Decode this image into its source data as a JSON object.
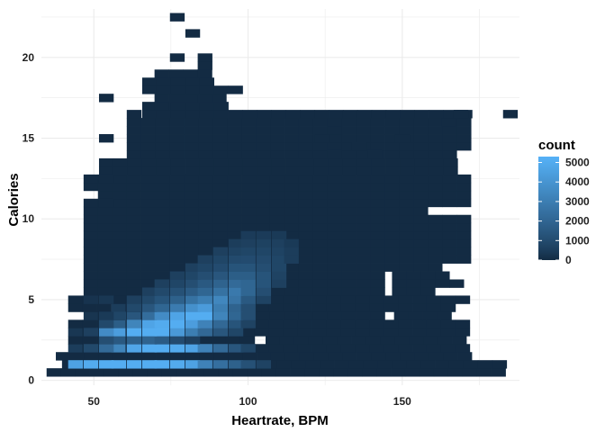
{
  "chart_data": {
    "type": "heatmap",
    "title": "",
    "xlabel": "Heartrate, BPM",
    "ylabel": "Calories",
    "xlim": [
      33,
      188
    ],
    "ylim": [
      -0.3,
      23
    ],
    "x_ticks": [
      50,
      100,
      150
    ],
    "x_minor_ticks": [
      75,
      125,
      175
    ],
    "y_ticks": [
      0,
      5,
      10,
      15,
      20
    ],
    "y_minor_ticks": [
      2.5,
      7.5,
      12.5,
      17.5,
      22.5
    ],
    "grid": true,
    "legend": {
      "title": "count",
      "position": "right",
      "breaks": [
        5000,
        4000,
        3000,
        2000,
        1000,
        0
      ],
      "limits": [
        0,
        5300
      ]
    },
    "colors": {
      "low": "#132B43",
      "high": "#56B1F7",
      "grid": "#ebebeb"
    },
    "bin_width": {
      "x": 4.65,
      "y": 0.5
    },
    "rows": [
      {
        "y": 1.0,
        "spans": [
          [
            42,
            47,
            0
          ]
        ],
        "values": [
          [
            44,
            45,
            5000
          ],
          [
            49,
            70,
            5100
          ],
          [
            75,
            5000
          ],
          [
            80,
            4200
          ],
          [
            84,
            3000
          ],
          [
            89,
            2500
          ],
          [
            94,
            1800
          ],
          [
            98,
            1200
          ],
          [
            103,
            700
          ]
        ]
      },
      {
        "y": 1.0,
        "spans": [
          [
            40,
            183,
            0
          ]
        ]
      },
      {
        "y": 2.0,
        "spans": [
          [
            44,
            172,
            0
          ]
        ],
        "values": [
          [
            54,
            1500
          ],
          [
            58,
            2000
          ],
          [
            63,
            3200
          ],
          [
            68,
            4500
          ],
          [
            72,
            5000
          ],
          [
            77,
            4800
          ],
          [
            82,
            4200
          ],
          [
            86,
            3200
          ],
          [
            91,
            2000
          ],
          [
            96,
            1200
          ],
          [
            100,
            700
          ]
        ]
      },
      {
        "y": 2.5,
        "spans": [
          [
            44,
            102,
            0
          ],
          [
            107,
            172,
            0
          ]
        ],
        "values": [
          [
            54,
            900
          ],
          [
            58,
            1300
          ],
          [
            63,
            1800
          ],
          [
            68,
            2000
          ],
          [
            72,
            1600
          ],
          [
            77,
            900
          ],
          [
            82,
            500
          ]
        ]
      },
      {
        "y": 3.0,
        "spans": [
          [
            44,
            172,
            0
          ]
        ],
        "values": [
          [
            54,
            700
          ],
          [
            58,
            1600
          ],
          [
            63,
            2600
          ],
          [
            68,
            4600
          ],
          [
            72,
            5000
          ],
          [
            77,
            4200
          ],
          [
            82,
            3000
          ],
          [
            86,
            2200
          ],
          [
            91,
            1500
          ],
          [
            96,
            900
          ]
        ]
      },
      {
        "y": 3.5,
        "spans": [
          [
            44,
            172,
            0
          ]
        ],
        "values": [
          [
            54,
            500
          ],
          [
            58,
            900
          ],
          [
            63,
            1500
          ],
          [
            68,
            2600
          ],
          [
            72,
            3800
          ],
          [
            77,
            4800
          ],
          [
            82,
            5000
          ],
          [
            86,
            3500
          ],
          [
            91,
            2400
          ],
          [
            96,
            1400
          ],
          [
            100,
            700
          ]
        ]
      },
      {
        "y": 4.0,
        "spans": [
          [
            44,
            172,
            0
          ]
        ],
        "values": [
          [
            58,
            600
          ],
          [
            63,
            1000
          ],
          [
            68,
            1500
          ],
          [
            72,
            2400
          ],
          [
            77,
            3600
          ],
          [
            82,
            4600
          ],
          [
            86,
            5000
          ],
          [
            91,
            3600
          ],
          [
            96,
            2200
          ],
          [
            100,
            1200
          ]
        ]
      },
      {
        "y": 4.5,
        "spans": [
          [
            49,
            172,
            0
          ]
        ],
        "values": [
          [
            58,
            400
          ],
          [
            63,
            700
          ],
          [
            68,
            1000
          ],
          [
            72,
            1500
          ],
          [
            77,
            2300
          ],
          [
            82,
            3200
          ],
          [
            86,
            3900
          ],
          [
            91,
            2800
          ],
          [
            96,
            1800
          ],
          [
            100,
            1100
          ]
        ]
      },
      {
        "y": 5.0,
        "spans": [
          [
            44,
            172,
            0
          ]
        ],
        "values": [
          [
            63,
            500
          ],
          [
            68,
            700
          ],
          [
            72,
            1000
          ],
          [
            77,
            1500
          ],
          [
            82,
            2000
          ],
          [
            86,
            2600
          ],
          [
            91,
            3000
          ],
          [
            96,
            2400
          ],
          [
            100,
            1500
          ],
          [
            105,
            700
          ]
        ]
      },
      {
        "y": 5.5,
        "spans": [
          [
            44,
            172,
            0
          ]
        ],
        "values": [
          [
            68,
            500
          ],
          [
            72,
            700
          ],
          [
            77,
            1000
          ],
          [
            82,
            1400
          ],
          [
            86,
            1800
          ],
          [
            91,
            2300
          ],
          [
            96,
            2700
          ],
          [
            100,
            2000
          ],
          [
            105,
            1100
          ]
        ]
      },
      {
        "y": 6.0,
        "spans": [
          [
            44,
            172,
            0
          ]
        ],
        "values": [
          [
            72,
            500
          ],
          [
            77,
            700
          ],
          [
            82,
            1000
          ],
          [
            86,
            1300
          ],
          [
            91,
            1700
          ],
          [
            96,
            2000
          ],
          [
            100,
            1900
          ],
          [
            105,
            1200
          ],
          [
            110,
            600
          ]
        ]
      },
      {
        "y": 6.5,
        "spans": [
          [
            49,
            172,
            0
          ]
        ],
        "values": [
          [
            77,
            500
          ],
          [
            82,
            700
          ],
          [
            86,
            900
          ],
          [
            91,
            1200
          ],
          [
            96,
            1500
          ],
          [
            100,
            1600
          ],
          [
            105,
            1200
          ],
          [
            110,
            700
          ]
        ]
      },
      {
        "y": 7.0,
        "spans": [
          [
            49,
            172,
            0
          ]
        ],
        "values": [
          [
            82,
            500
          ],
          [
            86,
            700
          ],
          [
            91,
            900
          ],
          [
            96,
            1100
          ],
          [
            100,
            1200
          ],
          [
            105,
            1000
          ],
          [
            110,
            700
          ]
        ]
      },
      {
        "y": 7.5,
        "spans": [
          [
            49,
            172,
            0
          ]
        ],
        "values": [
          [
            86,
            500
          ],
          [
            91,
            700
          ],
          [
            96,
            800
          ],
          [
            100,
            900
          ],
          [
            105,
            900
          ],
          [
            110,
            700
          ]
        ]
      },
      {
        "y": 8.0,
        "spans": [
          [
            49,
            172,
            0
          ]
        ],
        "values": [
          [
            91,
            500
          ],
          [
            96,
            600
          ],
          [
            100,
            700
          ],
          [
            105,
            700
          ],
          [
            110,
            600
          ]
        ]
      },
      {
        "y": 8.5,
        "spans": [
          [
            49,
            172,
            0
          ]
        ],
        "values": [
          [
            96,
            400
          ],
          [
            100,
            500
          ],
          [
            105,
            600
          ],
          [
            110,
            500
          ]
        ]
      },
      {
        "y": 9.0,
        "spans": [
          [
            49,
            172,
            0
          ]
        ],
        "values": [
          [
            100,
            400
          ],
          [
            105,
            400
          ]
        ]
      }
    ],
    "extra_cells": [],
    "mask": []
  }
}
